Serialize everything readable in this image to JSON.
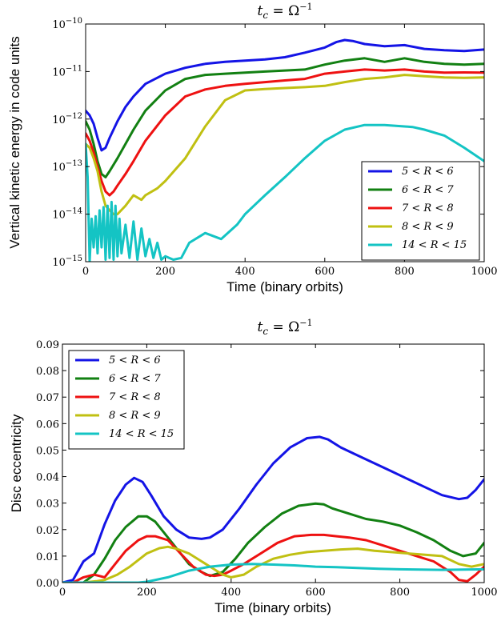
{
  "chart_data": [
    {
      "type": "line",
      "title": "t_c = Ω^-1",
      "xlabel": "Time (binary orbits)",
      "ylabel": "Vertical kinetic energy in code units",
      "xlim": [
        0,
        1000
      ],
      "ylim": [
        1e-15,
        1e-10
      ],
      "yscale": "log",
      "xticks": [
        "0",
        "200",
        "400",
        "600",
        "800",
        "1000"
      ],
      "yticks": [
        "10^-15",
        "10^-14",
        "10^-13",
        "10^-12",
        "10^-11",
        "10^-10"
      ],
      "legend_position": "lower-right",
      "series": [
        {
          "name": "5 < R < 6",
          "color": "#1414e6",
          "x": [
            0,
            10,
            20,
            30,
            40,
            50,
            60,
            80,
            100,
            120,
            150,
            200,
            250,
            300,
            350,
            400,
            450,
            500,
            550,
            600,
            630,
            650,
            670,
            700,
            750,
            800,
            850,
            900,
            950,
            1000
          ],
          "y": [
            1.5e-12,
            1.2e-12,
            8e-13,
            4e-13,
            2.2e-13,
            2.5e-13,
            4e-13,
            9e-13,
            1.8e-12,
            3e-12,
            5.5e-12,
            9e-12,
            1.2e-11,
            1.45e-11,
            1.6e-11,
            1.7e-11,
            1.8e-11,
            2e-11,
            2.5e-11,
            3.2e-11,
            4.2e-11,
            4.6e-11,
            4.4e-11,
            3.8e-11,
            3.4e-11,
            3.6e-11,
            3e-11,
            2.8e-11,
            2.7e-11,
            2.9e-11
          ]
        },
        {
          "name": "6 < R < 7",
          "color": "#128012",
          "x": [
            0,
            10,
            20,
            30,
            40,
            50,
            60,
            80,
            100,
            120,
            150,
            200,
            250,
            300,
            350,
            400,
            450,
            500,
            550,
            600,
            650,
            700,
            750,
            800,
            850,
            900,
            950,
            1000
          ],
          "y": [
            9e-13,
            6e-13,
            3e-13,
            1.3e-13,
            7e-14,
            6e-14,
            8e-14,
            1.5e-13,
            3e-13,
            6e-13,
            1.5e-12,
            4e-12,
            7e-12,
            8.5e-12,
            9e-12,
            9.5e-12,
            1e-11,
            1.05e-11,
            1.1e-11,
            1.4e-11,
            1.7e-11,
            1.9e-11,
            1.6e-11,
            1.9e-11,
            1.6e-11,
            1.45e-11,
            1.4e-11,
            1.45e-11
          ]
        },
        {
          "name": "7 < R < 8",
          "color": "#ee1111",
          "x": [
            0,
            10,
            20,
            30,
            40,
            50,
            60,
            70,
            80,
            100,
            120,
            150,
            200,
            250,
            300,
            350,
            400,
            450,
            500,
            550,
            600,
            650,
            700,
            750,
            800,
            850,
            900,
            950,
            1000
          ],
          "y": [
            5e-13,
            3.5e-13,
            2e-13,
            1e-13,
            5e-14,
            3e-14,
            2.5e-14,
            3e-14,
            4e-14,
            7e-14,
            1.3e-13,
            3.5e-13,
            1.2e-12,
            3e-12,
            4.2e-12,
            5e-12,
            5.5e-12,
            6e-12,
            6.5e-12,
            7e-12,
            9e-12,
            1e-11,
            1.1e-11,
            1.05e-11,
            1.1e-11,
            1e-11,
            9.5e-12,
            9.6e-12,
            9.5e-12
          ]
        },
        {
          "name": "8 < R < 9",
          "color": "#c0c012",
          "x": [
            0,
            10,
            20,
            30,
            40,
            50,
            60,
            70,
            80,
            100,
            120,
            140,
            150,
            180,
            200,
            250,
            300,
            350,
            400,
            450,
            500,
            550,
            600,
            650,
            700,
            750,
            800,
            850,
            900,
            950,
            1000
          ],
          "y": [
            3e-13,
            2.5e-13,
            1.5e-13,
            8e-14,
            3e-14,
            1.5e-14,
            1.2e-14,
            1e-14,
            1e-14,
            1.5e-14,
            2.5e-14,
            2e-14,
            2.5e-14,
            3.5e-14,
            5e-14,
            1.5e-13,
            7e-13,
            2.5e-12,
            4e-12,
            4.3e-12,
            4.5e-12,
            4.7e-12,
            5e-12,
            6e-12,
            7e-12,
            7.5e-12,
            8.5e-12,
            8e-12,
            7.5e-12,
            7.4e-12,
            7.5e-12
          ]
        },
        {
          "name": "14 < R < 15",
          "color": "#14c4c4",
          "x": [
            0,
            5,
            10,
            15,
            20,
            25,
            30,
            35,
            40,
            45,
            50,
            55,
            60,
            65,
            70,
            75,
            80,
            85,
            90,
            100,
            110,
            120,
            130,
            140,
            150,
            160,
            170,
            180,
            190,
            200,
            220,
            240,
            260,
            300,
            340,
            380,
            400,
            450,
            500,
            550,
            600,
            650,
            700,
            750,
            800,
            820,
            850,
            900,
            950,
            1000
          ],
          "y": [
            3e-13,
            6e-14,
            1e-15,
            8e-15,
            2e-15,
            9e-15,
            1.5e-15,
            1.2e-14,
            2e-15,
            1.4e-14,
            1.1e-15,
            1.5e-14,
            1.2e-15,
            1.8e-14,
            1.1e-15,
            1.5e-14,
            1.3e-15,
            8e-15,
            1.5e-15,
            6e-15,
            1.2e-15,
            7e-15,
            1.1e-15,
            5e-15,
            1.3e-15,
            3e-15,
            1.2e-15,
            2.5e-15,
            1.1e-15,
            1.3e-15,
            1.1e-15,
            1.2e-15,
            2.5e-15,
            4e-15,
            3e-15,
            6e-15,
            1e-14,
            2.5e-14,
            6e-14,
            1.5e-13,
            3.5e-13,
            6e-13,
            7.5e-13,
            7.5e-13,
            7e-13,
            6.8e-13,
            6e-13,
            4.5e-13,
            2.5e-13,
            1.3e-13
          ]
        }
      ]
    },
    {
      "type": "line",
      "title": "t_c = Ω^-1",
      "xlabel": "Time (binary orbits)",
      "ylabel": "Disc eccentricity",
      "xlim": [
        0,
        1000
      ],
      "ylim": [
        0,
        0.09
      ],
      "xticks": [
        "0",
        "200",
        "400",
        "600",
        "800",
        "1000"
      ],
      "yticks": [
        "0.00",
        "0.01",
        "0.02",
        "0.03",
        "0.04",
        "0.05",
        "0.06",
        "0.07",
        "0.08",
        "0.09"
      ],
      "legend_position": "upper-left",
      "series": [
        {
          "name": "5 < R < 6",
          "color": "#1414e6",
          "x": [
            0,
            25,
            50,
            75,
            100,
            125,
            150,
            170,
            190,
            210,
            240,
            270,
            300,
            330,
            350,
            380,
            420,
            460,
            500,
            540,
            580,
            610,
            630,
            660,
            700,
            740,
            780,
            820,
            860,
            900,
            940,
            960,
            980,
            1000
          ],
          "y": [
            0,
            0.001,
            0.008,
            0.011,
            0.022,
            0.031,
            0.037,
            0.0395,
            0.038,
            0.033,
            0.025,
            0.02,
            0.017,
            0.0165,
            0.017,
            0.02,
            0.028,
            0.037,
            0.045,
            0.051,
            0.0545,
            0.055,
            0.054,
            0.051,
            0.048,
            0.045,
            0.042,
            0.039,
            0.036,
            0.033,
            0.0315,
            0.032,
            0.035,
            0.039
          ]
        },
        {
          "name": "6 < R < 7",
          "color": "#128012",
          "x": [
            0,
            25,
            50,
            75,
            100,
            125,
            150,
            180,
            200,
            220,
            250,
            280,
            300,
            330,
            350,
            380,
            410,
            440,
            480,
            520,
            560,
            600,
            620,
            640,
            680,
            720,
            760,
            800,
            840,
            880,
            920,
            950,
            980,
            1000
          ],
          "y": [
            0,
            0,
            0,
            0.003,
            0.009,
            0.016,
            0.021,
            0.025,
            0.025,
            0.023,
            0.017,
            0.011,
            0.007,
            0.004,
            0.0025,
            0.004,
            0.009,
            0.015,
            0.021,
            0.026,
            0.029,
            0.0298,
            0.0295,
            0.028,
            0.026,
            0.024,
            0.023,
            0.0215,
            0.019,
            0.016,
            0.012,
            0.01,
            0.011,
            0.015
          ]
        },
        {
          "name": "7 < R < 8",
          "color": "#ee1111",
          "x": [
            0,
            25,
            50,
            75,
            100,
            125,
            150,
            180,
            200,
            220,
            250,
            280,
            310,
            340,
            360,
            380,
            400,
            430,
            470,
            510,
            550,
            590,
            620,
            650,
            680,
            720,
            760,
            800,
            840,
            880,
            920,
            940,
            960,
            980,
            1000
          ],
          "y": [
            0,
            0,
            0.002,
            0.003,
            0.002,
            0.007,
            0.012,
            0.016,
            0.0175,
            0.0175,
            0.016,
            0.011,
            0.006,
            0.003,
            0.0025,
            0.003,
            0.0045,
            0.007,
            0.011,
            0.015,
            0.0175,
            0.018,
            0.018,
            0.0175,
            0.017,
            0.016,
            0.014,
            0.012,
            0.01,
            0.008,
            0.004,
            0.001,
            0.0005,
            0.003,
            0.006
          ]
        },
        {
          "name": "8 < R < 9",
          "color": "#c0c012",
          "x": [
            0,
            50,
            80,
            100,
            130,
            160,
            200,
            230,
            250,
            270,
            300,
            330,
            360,
            380,
            400,
            430,
            460,
            500,
            540,
            580,
            620,
            660,
            700,
            740,
            780,
            820,
            860,
            900,
            940,
            970,
            1000
          ],
          "y": [
            0,
            0,
            0.0005,
            0.001,
            0.003,
            0.006,
            0.011,
            0.013,
            0.0135,
            0.0128,
            0.011,
            0.008,
            0.005,
            0.003,
            0.002,
            0.003,
            0.006,
            0.009,
            0.0105,
            0.0115,
            0.012,
            0.0125,
            0.0128,
            0.012,
            0.0115,
            0.011,
            0.0105,
            0.01,
            0.007,
            0.006,
            0.007
          ]
        },
        {
          "name": "14 < R < 15",
          "color": "#14c4c4",
          "x": [
            0,
            100,
            150,
            180,
            200,
            250,
            300,
            350,
            400,
            450,
            500,
            550,
            600,
            650,
            700,
            750,
            800,
            850,
            900,
            950,
            1000
          ],
          "y": [
            0,
            0,
            0,
            0,
            0.0003,
            0.002,
            0.0045,
            0.006,
            0.0068,
            0.007,
            0.0068,
            0.0065,
            0.006,
            0.0058,
            0.0055,
            0.0052,
            0.005,
            0.0049,
            0.0048,
            0.0049,
            0.005
          ]
        }
      ]
    }
  ]
}
